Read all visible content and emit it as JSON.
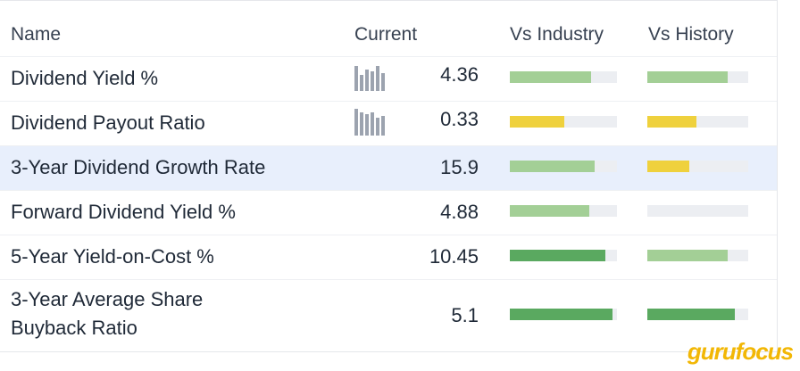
{
  "headers": {
    "name": "Name",
    "current": "Current",
    "vs_industry": "Vs Industry",
    "vs_history": "Vs History"
  },
  "rows": [
    {
      "name": "Dividend Yield %",
      "value": "4.36",
      "industry": 0.76,
      "industry_color": "#a3cf96",
      "history": 0.8,
      "history_color": "#a3cf96"
    },
    {
      "name": "Dividend Payout Ratio",
      "value": "0.33",
      "industry": 0.51,
      "industry_color": "#efd13d",
      "history": 0.49,
      "history_color": "#efd13d"
    },
    {
      "name": "3-Year Dividend Growth Rate",
      "value": "15.9",
      "industry": 0.79,
      "industry_color": "#a3cf96",
      "history": 0.42,
      "history_color": "#efd13d"
    },
    {
      "name": "Forward Dividend Yield %",
      "value": "4.88",
      "industry": 0.74,
      "industry_color": "#a3cf96",
      "history": 0.0,
      "history_color": "#a3cf96"
    },
    {
      "name": "5-Year Yield-on-Cost %",
      "value": "10.45",
      "industry": 0.89,
      "industry_color": "#5aa960",
      "history": 0.8,
      "history_color": "#a3cf96"
    },
    {
      "name": "3-Year Average Share",
      "name2": "Buyback Ratio",
      "value": "5.1",
      "industry": 0.96,
      "industry_color": "#5aa960",
      "history": 0.87,
      "history_color": "#5aa960"
    }
  ],
  "logo": {
    "part1": "guru",
    "part2": "focus"
  }
}
